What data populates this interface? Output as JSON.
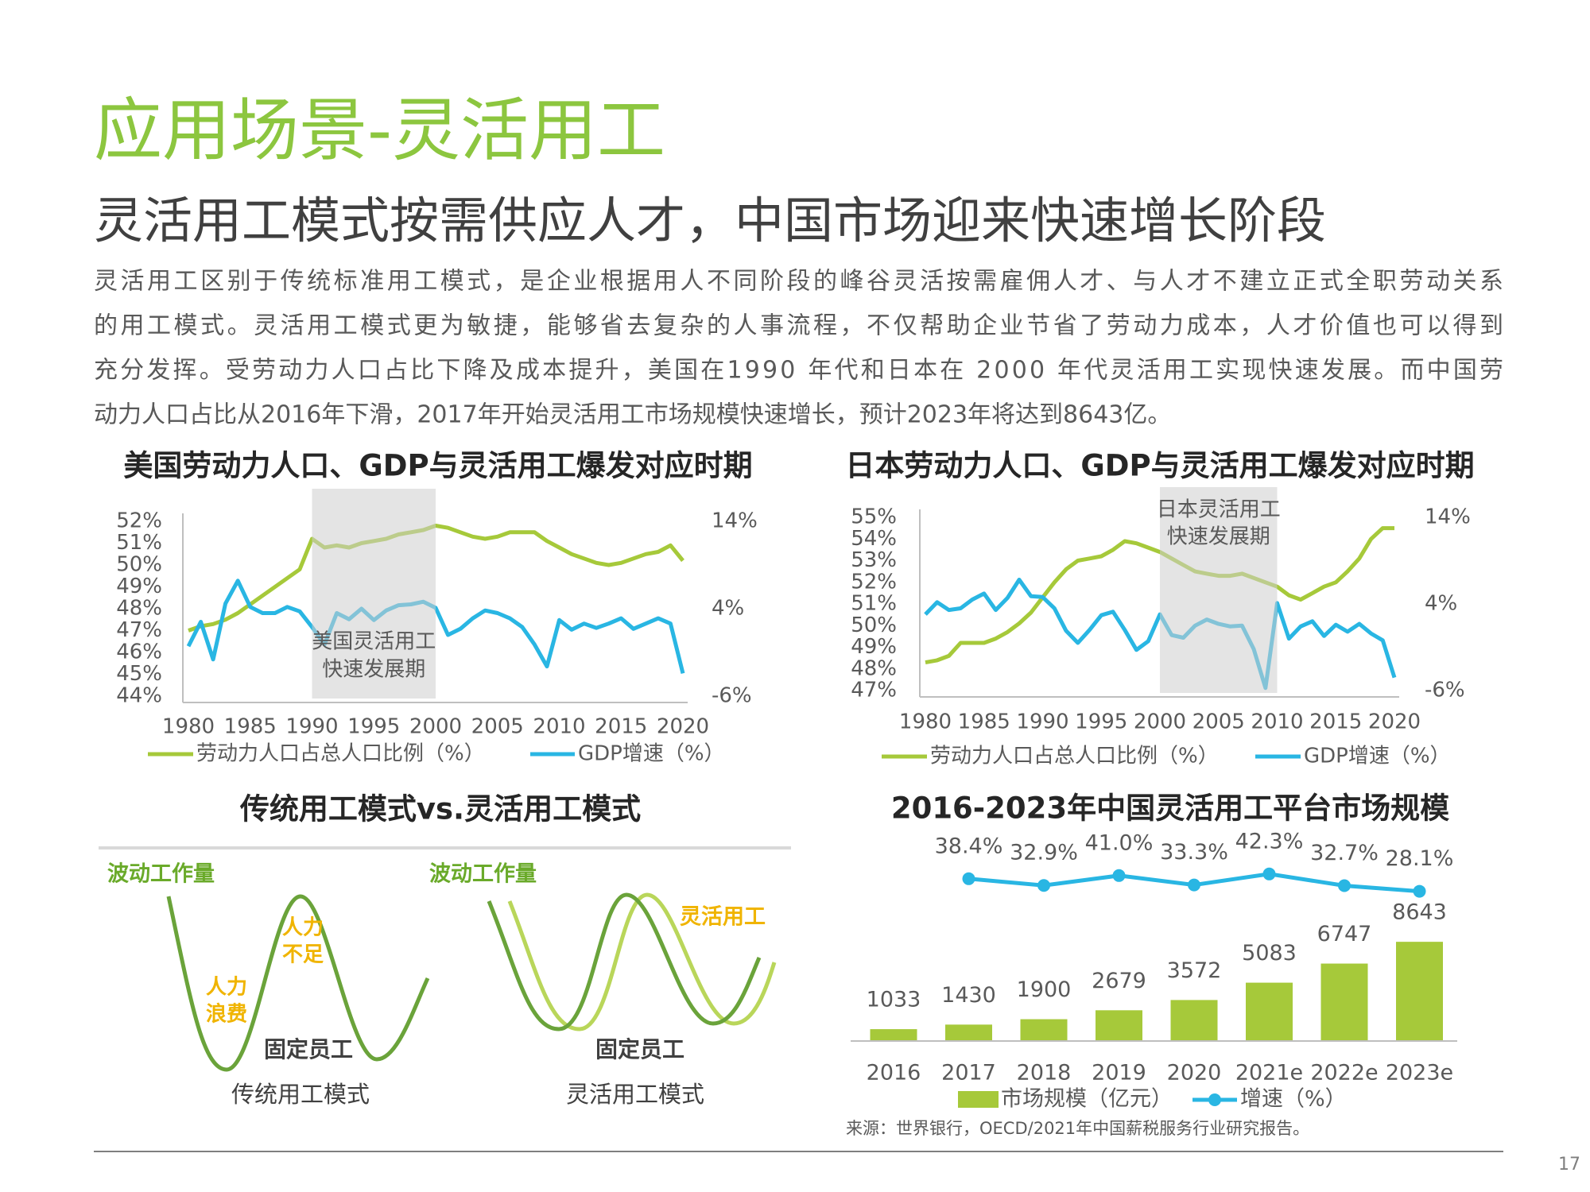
{
  "header": {
    "title": "应用场景-灵活用工",
    "subtitle": "灵活用工模式按需供应人才，中国市场迎来快速增长阶段"
  },
  "body": [
    "灵活用工区别于传统标准用工模式，是企业根据用人不同阶段的峰谷灵活按需雇佣人才、与人才不建立正式全职劳动关系",
    "的用工模式。灵活用工模式更为敏捷，能够省去复杂的人事流程，不仅帮助企业节省了劳动力成本，人才价值也可以得到",
    "充分发挥。受劳动力人口占比下降及成本提升，美国在1990 年代和日本在 2000 年代灵活用工实现快速发展。而中国劳",
    "动力人口占比从2016年下滑，2017年开始灵活用工市场规模快速增长，预计2023年将达到8643亿。"
  ],
  "chart_data": [
    {
      "type": "line",
      "title": "美国劳动力人口、GDP与灵活用工爆发对应时期",
      "x": [
        1980,
        1981,
        1982,
        1983,
        1984,
        1985,
        1986,
        1987,
        1988,
        1989,
        1990,
        1991,
        1992,
        1993,
        1994,
        1995,
        1996,
        1997,
        1998,
        1999,
        2000,
        2001,
        2002,
        2003,
        2004,
        2005,
        2006,
        2007,
        2008,
        2009,
        2010,
        2011,
        2012,
        2013,
        2014,
        2015,
        2016,
        2017,
        2018,
        2019,
        2020
      ],
      "xlim": [
        1980,
        2020
      ],
      "xticks": [
        1980,
        1985,
        1990,
        1995,
        2000,
        2005,
        2010,
        2015,
        2020
      ],
      "ylim": [
        44,
        52
      ],
      "yticks": [
        {
          "value": 44,
          "label": "44%"
        },
        {
          "value": 45,
          "label": "45%"
        },
        {
          "value": 46,
          "label": "46%"
        },
        {
          "value": 47,
          "label": "47%"
        },
        {
          "value": 48,
          "label": "48%"
        },
        {
          "value": 49,
          "label": "49%"
        },
        {
          "value": 50,
          "label": "50%"
        },
        {
          "value": 51,
          "label": "51%"
        },
        {
          "value": 52,
          "label": "52%"
        }
      ],
      "y2lim": [
        -6,
        14
      ],
      "y2ticks": [
        {
          "value": -6,
          "label": "-6%"
        },
        {
          "value": 4,
          "label": "4%"
        },
        {
          "value": 14,
          "label": "14%"
        }
      ],
      "highlight": {
        "x": [
          1990,
          2000
        ],
        "label": [
          "美国灵活用工",
          "快速发展期"
        ]
      },
      "series": [
        {
          "name": "劳动力人口占总人口比例（%）",
          "color": "#a6c93a",
          "values": [
            47.0,
            47.2,
            47.3,
            47.5,
            47.8,
            48.2,
            48.6,
            49.0,
            49.4,
            49.8,
            51.2,
            50.8,
            50.9,
            50.8,
            51.0,
            51.1,
            51.2,
            51.4,
            51.5,
            51.6,
            51.8,
            51.7,
            51.5,
            51.3,
            51.2,
            51.3,
            51.5,
            51.5,
            51.5,
            51.1,
            50.8,
            50.5,
            50.3,
            50.1,
            50.0,
            50.1,
            50.3,
            50.5,
            50.6,
            50.9,
            50.2
          ]
        },
        {
          "name": "GDP增速（%）",
          "color": "#29b6e3",
          "axis": "y2",
          "values": [
            -0.3,
            2.5,
            -1.8,
            4.6,
            7.2,
            4.2,
            3.5,
            3.5,
            4.2,
            3.7,
            1.9,
            -0.1,
            3.5,
            2.8,
            4.0,
            2.7,
            3.8,
            4.4,
            4.5,
            4.8,
            4.1,
            1.0,
            1.7,
            2.9,
            3.8,
            3.5,
            2.9,
            1.9,
            -0.1,
            -2.6,
            2.7,
            1.6,
            2.3,
            1.8,
            2.3,
            2.9,
            1.7,
            2.3,
            2.9,
            2.3,
            -3.4
          ]
        }
      ]
    },
    {
      "type": "line",
      "title": "日本劳动力人口、GDP与灵活用工爆发对应时期",
      "x": [
        1980,
        1981,
        1982,
        1983,
        1984,
        1985,
        1986,
        1987,
        1988,
        1989,
        1990,
        1991,
        1992,
        1993,
        1994,
        1995,
        1996,
        1997,
        1998,
        1999,
        2000,
        2001,
        2002,
        2003,
        2004,
        2005,
        2006,
        2007,
        2008,
        2009,
        2010,
        2011,
        2012,
        2013,
        2014,
        2015,
        2016,
        2017,
        2018,
        2019,
        2020
      ],
      "xlim": [
        1980,
        2020
      ],
      "xticks": [
        1980,
        1985,
        1990,
        1995,
        2000,
        2005,
        2010,
        2015,
        2020
      ],
      "ylim": [
        47,
        55
      ],
      "yticks": [
        {
          "value": 47,
          "label": "47%"
        },
        {
          "value": 48,
          "label": "48%"
        },
        {
          "value": 49,
          "label": "49%"
        },
        {
          "value": 50,
          "label": "50%"
        },
        {
          "value": 51,
          "label": "51%"
        },
        {
          "value": 52,
          "label": "52%"
        },
        {
          "value": 53,
          "label": "53%"
        },
        {
          "value": 54,
          "label": "54%"
        },
        {
          "value": 55,
          "label": "55%"
        }
      ],
      "y2lim": [
        -6,
        14
      ],
      "y2ticks": [
        {
          "value": -6,
          "label": "-6%"
        },
        {
          "value": 4,
          "label": "4%"
        },
        {
          "value": 14,
          "label": "14%"
        }
      ],
      "highlight": {
        "x": [
          2000,
          2010
        ],
        "label": [
          "日本灵活用工",
          "快速发展期"
        ]
      },
      "series": [
        {
          "name": "劳动力人口占总人口比例（%）",
          "color": "#a6c93a",
          "values": [
            48.3,
            48.4,
            48.6,
            49.2,
            49.2,
            49.2,
            49.4,
            49.7,
            50.1,
            50.6,
            51.3,
            52.0,
            52.6,
            53.0,
            53.1,
            53.2,
            53.5,
            53.9,
            53.8,
            53.6,
            53.4,
            53.1,
            52.8,
            52.5,
            52.4,
            52.3,
            52.3,
            52.4,
            52.2,
            52.0,
            51.8,
            51.4,
            51.2,
            51.5,
            51.8,
            52.0,
            52.5,
            53.1,
            54.0,
            54.5,
            54.5
          ]
        },
        {
          "name": "GDP增速（%）",
          "color": "#29b6e3",
          "axis": "y2",
          "values": [
            2.8,
            4.2,
            3.3,
            3.5,
            4.5,
            5.2,
            3.3,
            4.7,
            6.8,
            4.9,
            4.8,
            3.5,
            0.9,
            -0.5,
            1.0,
            2.7,
            3.1,
            1.0,
            -1.3,
            -0.3,
            2.8,
            0.4,
            0.1,
            1.5,
            2.2,
            1.7,
            1.4,
            1.5,
            -1.2,
            -5.7,
            4.1,
            0.0,
            1.4,
            2.0,
            0.3,
            1.6,
            0.8,
            1.7,
            0.6,
            -0.2,
            -4.5
          ]
        }
      ]
    },
    {
      "type": "bar",
      "title": "2016-2023年中国灵活用工平台市场规模",
      "categories": [
        "2016",
        "2017",
        "2018",
        "2019",
        "2020",
        "2021e",
        "2022e",
        "2023e"
      ],
      "ylim": [
        0,
        9000
      ],
      "y2lim": [
        20,
        50
      ],
      "series": [
        {
          "name": "市场规模（亿元）",
          "color": "#a6c93a",
          "values": [
            1033,
            1430,
            1900,
            2679,
            3572,
            5083,
            6747,
            8643
          ]
        },
        {
          "name": "增速（%）",
          "color": "#29b6e3",
          "axis": "y2",
          "type": "line",
          "values": [
            null,
            38.4,
            32.9,
            41.0,
            33.3,
            42.3,
            32.7,
            28.1
          ],
          "value_labels": [
            null,
            "38.4%",
            "32.9%",
            "41.0%",
            "33.3%",
            "42.3%",
            "32.7%",
            "28.1%"
          ]
        }
      ]
    }
  ],
  "diagram": {
    "title": "传统用工模式vs.灵活用工模式",
    "traditional": {
      "workload": "波动工作量",
      "waste": [
        "人力",
        "浪费"
      ],
      "shortage": [
        "人力",
        "不足"
      ],
      "fixed": "固定员工",
      "caption": "传统用工模式"
    },
    "flexible": {
      "workload": "波动工作量",
      "flex": "灵活用工",
      "fixed": "固定员工",
      "caption": "灵活用工模式"
    }
  },
  "source": "来源：世界银行，OECD/2021年中国薪税服务行业研究报告。",
  "page_number": "17"
}
